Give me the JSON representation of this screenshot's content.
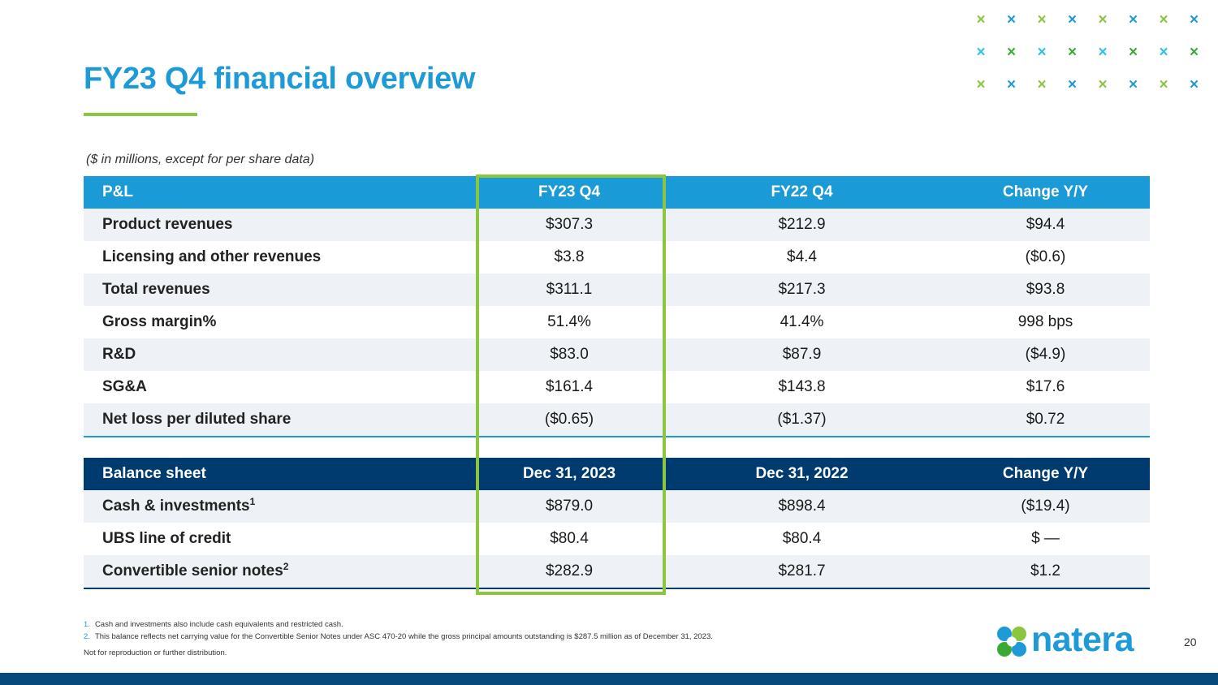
{
  "title": "FY23 Q4 financial overview",
  "subtitle": "($ in millions, except for per share data)",
  "colors": {
    "accent_blue": "#1e9bd7",
    "accent_green": "#8cc63f",
    "navy": "#003b6f"
  },
  "pl_table": {
    "headers": [
      "P&L",
      "FY23 Q4",
      "FY22 Q4",
      "Change Y/Y"
    ],
    "rows": [
      [
        "Product revenues",
        "$307.3",
        "$212.9",
        "$94.4"
      ],
      [
        "Licensing and other revenues",
        "$3.8",
        "$4.4",
        "($0.6)"
      ],
      [
        "Total revenues",
        "$311.1",
        "$217.3",
        "$93.8"
      ],
      [
        "Gross margin%",
        "51.4%",
        "41.4%",
        "998 bps"
      ],
      [
        "R&D",
        "$83.0",
        "$87.9",
        "($4.9)"
      ],
      [
        "SG&A",
        "$161.4",
        "$143.8",
        "$17.6"
      ],
      [
        "Net loss per diluted share",
        "($0.65)",
        "($1.37)",
        "$0.72"
      ]
    ]
  },
  "bs_table": {
    "headers": [
      "Balance sheet",
      "Dec 31, 2023",
      "Dec 31, 2022",
      "Change Y/Y"
    ],
    "rows": [
      {
        "label": "Cash & investments",
        "sup": "1",
        "values": [
          "$879.0",
          "$898.4",
          "($19.4)"
        ]
      },
      {
        "label": "UBS line of credit",
        "sup": "",
        "values": [
          "$80.4",
          "$80.4",
          "$ —"
        ]
      },
      {
        "label": "Convertible senior notes",
        "sup": "2",
        "values": [
          "$282.9",
          "$281.7",
          "$1.2"
        ]
      }
    ]
  },
  "footnotes": [
    {
      "num": "1.",
      "text": "Cash and investments also include cash equivalents and restricted cash."
    },
    {
      "num": "2.",
      "text": "This balance reflects net carrying value for the Convertible Senior Notes under ASC 470-20 while the gross principal amounts outstanding is $287.5 million as of December 31, 2023."
    }
  ],
  "disclaimer": "Not for reproduction or further distribution.",
  "logo_text": "natera",
  "page_number": "20",
  "decor_marks": {
    "glyph": "×",
    "colors": [
      "#8cc63f",
      "#1e9bd7",
      "#29c3e6",
      "#3aa935"
    ]
  }
}
